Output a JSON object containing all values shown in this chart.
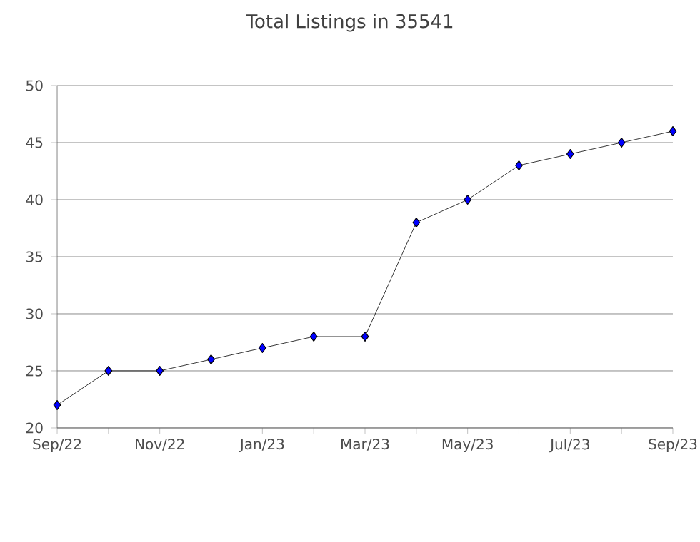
{
  "chart_data": {
    "type": "line",
    "title": "Total Listings in 35541",
    "x": [
      "2022-09",
      "2022-10",
      "2022-11",
      "2022-12",
      "2023-01",
      "2023-02",
      "2023-03",
      "2023-04",
      "2023-05",
      "2023-06",
      "2023-07",
      "2023-08",
      "2023-09"
    ],
    "series": [
      {
        "color": "#0000ff",
        "values": [
          22,
          25,
          25,
          26,
          27,
          28,
          28,
          38,
          40,
          43,
          44,
          45,
          46
        ]
      }
    ],
    "xlim": [
      "2022-09",
      "2023-09"
    ],
    "xticks": [
      {
        "value": "2022-09",
        "label": "Sep/22"
      },
      {
        "value": "2022-10",
        "label": null
      },
      {
        "value": "2022-11",
        "label": "Nov/22"
      },
      {
        "value": "2022-12",
        "label": null
      },
      {
        "value": "2023-01",
        "label": "Jan/23"
      },
      {
        "value": "2023-02",
        "label": null
      },
      {
        "value": "2023-03",
        "label": "Mar/23"
      },
      {
        "value": "2023-04",
        "label": null
      },
      {
        "value": "2023-05",
        "label": "May/23"
      },
      {
        "value": "2023-06",
        "label": null
      },
      {
        "value": "2023-07",
        "label": "Jul/23"
      },
      {
        "value": "2023-08",
        "label": null
      },
      {
        "value": "2023-09",
        "label": "Sep/23"
      }
    ],
    "ylim": [
      20,
      50
    ],
    "yticks": [
      20,
      25,
      30,
      35,
      40,
      45,
      50
    ],
    "grid": "y",
    "marker": "diamond",
    "line_style": "solid"
  }
}
